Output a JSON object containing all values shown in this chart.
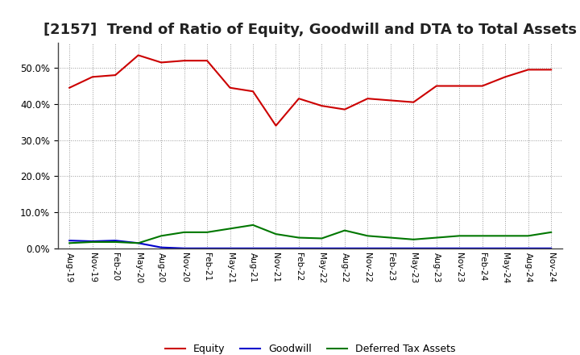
{
  "title": "[2157]  Trend of Ratio of Equity, Goodwill and DTA to Total Assets",
  "x_labels": [
    "Aug-19",
    "Nov-19",
    "Feb-20",
    "May-20",
    "Aug-20",
    "Nov-20",
    "Feb-21",
    "May-21",
    "Aug-21",
    "Nov-21",
    "Feb-22",
    "May-22",
    "Aug-22",
    "Nov-22",
    "Feb-23",
    "May-23",
    "Aug-23",
    "Nov-23",
    "Feb-24",
    "May-24",
    "Aug-24",
    "Nov-24"
  ],
  "equity": [
    44.5,
    47.5,
    48.0,
    53.5,
    51.5,
    52.0,
    52.0,
    44.5,
    43.5,
    34.0,
    41.5,
    39.5,
    38.5,
    41.5,
    41.0,
    40.5,
    45.0,
    45.0,
    45.0,
    47.5,
    49.5,
    49.5
  ],
  "goodwill": [
    2.2,
    2.0,
    2.2,
    1.5,
    0.3,
    0.05,
    0.05,
    0.05,
    0.05,
    0.05,
    0.05,
    0.05,
    0.05,
    0.05,
    0.05,
    0.05,
    0.05,
    0.05,
    0.05,
    0.05,
    0.05,
    0.05
  ],
  "dta": [
    1.5,
    1.8,
    1.8,
    1.5,
    3.5,
    4.5,
    4.5,
    5.5,
    6.5,
    4.0,
    3.0,
    2.8,
    5.0,
    3.5,
    3.0,
    2.5,
    3.0,
    3.5,
    3.5,
    3.5,
    3.5,
    4.5
  ],
  "equity_color": "#cc0000",
  "goodwill_color": "#0000cc",
  "dta_color": "#007700",
  "background_color": "#ffffff",
  "plot_bg_color": "#ffffff",
  "grid_color": "#999999",
  "ylim": [
    0,
    57
  ],
  "yticks": [
    0,
    10,
    20,
    30,
    40,
    50
  ],
  "title_fontsize": 13,
  "legend_labels": [
    "Equity",
    "Goodwill",
    "Deferred Tax Assets"
  ]
}
